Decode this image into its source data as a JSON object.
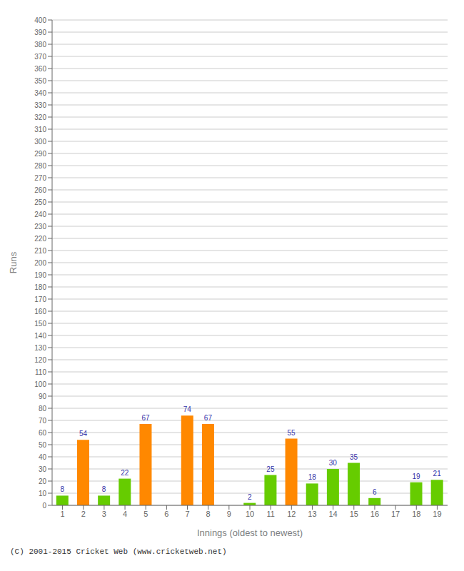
{
  "chart_data": {
    "type": "bar",
    "xlabel": "Innings (oldest to newest)",
    "ylabel": "Runs",
    "categories": [
      "1",
      "2",
      "3",
      "4",
      "5",
      "6",
      "7",
      "8",
      "9",
      "10",
      "11",
      "12",
      "13",
      "14",
      "15",
      "16",
      "17",
      "18",
      "19"
    ],
    "values": [
      8,
      54,
      8,
      22,
      67,
      0,
      74,
      67,
      0,
      2,
      25,
      55,
      18,
      30,
      35,
      6,
      0,
      19,
      21
    ],
    "colors": [
      "#66cc00",
      "#ff8800",
      "#66cc00",
      "#66cc00",
      "#ff8800",
      "#66cc00",
      "#ff8800",
      "#ff8800",
      "#66cc00",
      "#66cc00",
      "#66cc00",
      "#ff8800",
      "#66cc00",
      "#66cc00",
      "#66cc00",
      "#66cc00",
      "#66cc00",
      "#66cc00",
      "#66cc00"
    ],
    "ylim": [
      0,
      400
    ],
    "yticks": [
      0,
      10,
      20,
      30,
      40,
      50,
      60,
      70,
      80,
      90,
      100,
      110,
      120,
      130,
      140,
      150,
      160,
      170,
      180,
      190,
      200,
      210,
      220,
      230,
      240,
      250,
      260,
      270,
      280,
      290,
      300,
      310,
      320,
      330,
      340,
      350,
      360,
      370,
      380,
      390,
      400
    ],
    "grid": true,
    "data_labels": true,
    "annotations": [
      "(C) 2001-2015 Cricket Web (www.cricketweb.net)"
    ]
  }
}
